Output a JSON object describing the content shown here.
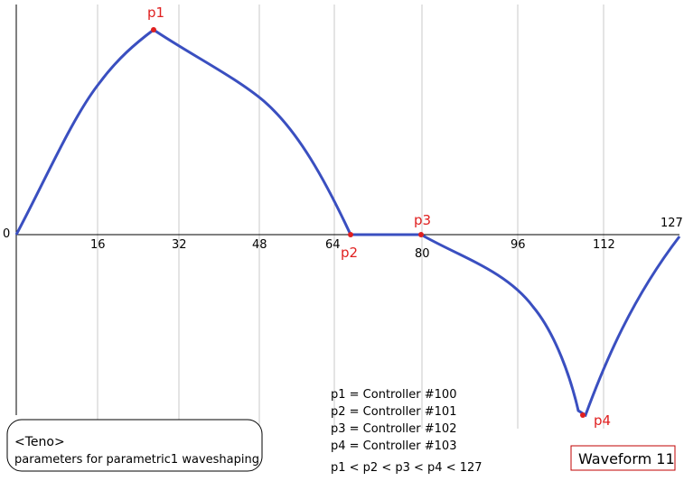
{
  "axis": {
    "ticks": [
      0,
      16,
      32,
      48,
      64,
      80,
      96,
      112,
      127
    ]
  },
  "points": [
    "p1",
    "p2",
    "p3",
    "p4"
  ],
  "notes": [
    "p1 = Controller #100",
    "p2 = Controller #101",
    "p3 = Controller #102",
    "p4 = Controller #103",
    "p1 < p2 < p3 < p4 < 127"
  ],
  "info_box": {
    "title": "<Teno>",
    "text": "parameters for parametric1 waveshaping"
  },
  "badge": "Waveform 11"
}
